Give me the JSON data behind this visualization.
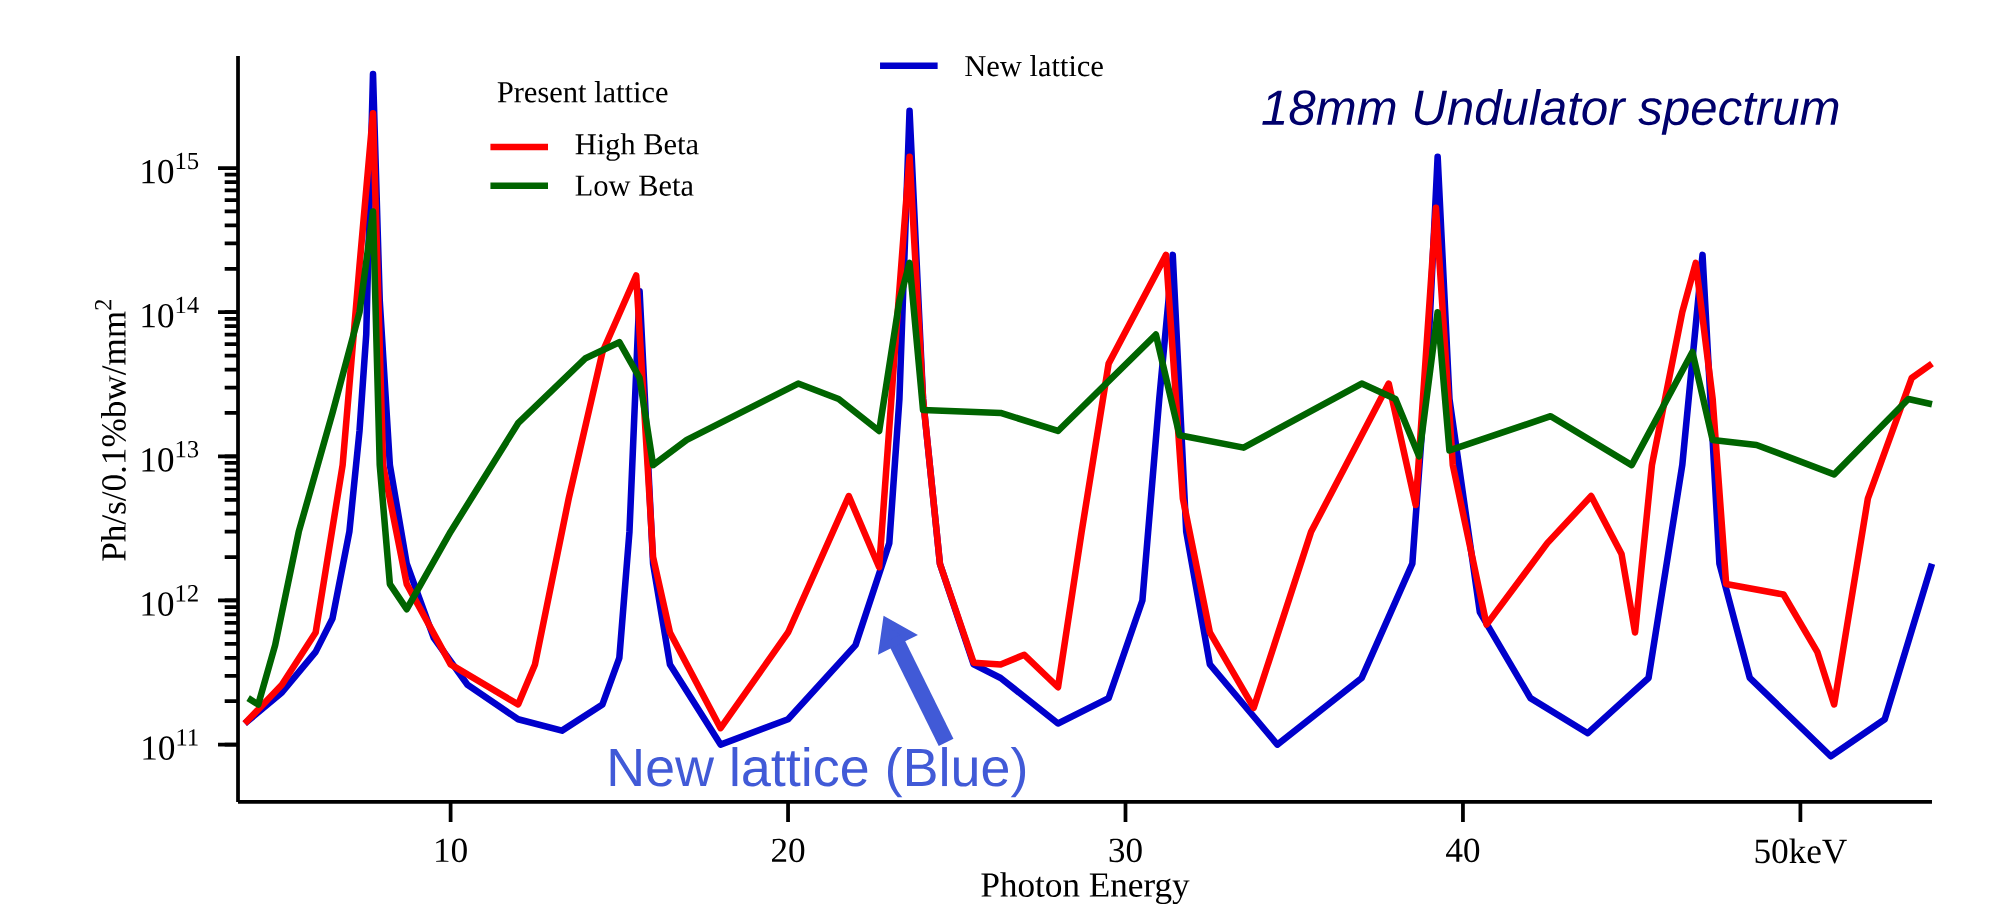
{
  "chart_data": {
    "type": "line",
    "title": "18mm Undulator spectrum",
    "xlabel": "Photon Energy",
    "ylabel": "Ph/s/0.1%bw/mm$^{2}$",
    "legend_title": "Present lattice",
    "legend": "top",
    "log": "y",
    "xlim": [
      3.7,
      53.9
    ],
    "ylim": [
      40000000000.0,
      6000000000000000.0
    ],
    "xticks": [
      10,
      20,
      30,
      40,
      {
        "value": 50,
        "label": "50keV"
      }
    ],
    "yticks": [
      {
        "value": 100000000000.0,
        "label": "10$^{11}$"
      },
      {
        "value": 1000000000000.0,
        "label": "10$^{12}$"
      },
      {
        "value": 10000000000000.0,
        "label": "10$^{13}$"
      },
      {
        "value": 100000000000000.0,
        "label": "10$^{14}$"
      },
      {
        "value": 1000000000000000.0,
        "label": "10$^{15}$"
      }
    ],
    "series": [
      {
        "name": "New lattice",
        "color": "#0000cc",
        "x": [
          3.9,
          5,
          6,
          6.5,
          7,
          7.3,
          7.5,
          7.7,
          7.9,
          8.2,
          8.7,
          9.5,
          10.5,
          12,
          13.3,
          14.5,
          15,
          15.3,
          15.6,
          16,
          16.5,
          18,
          20,
          22,
          23,
          23.3,
          23.6,
          24,
          24.5,
          25.5,
          26.3,
          28,
          29.5,
          30.5,
          31,
          31.4,
          31.8,
          32.5,
          34.5,
          37,
          38.5,
          39,
          39.25,
          39.6,
          40.5,
          42,
          43.7,
          45.5,
          46.5,
          47.1,
          47.6,
          48.5,
          50.9,
          52.5,
          53.9
        ],
        "values": [
          140000000000.0,
          230000000000.0,
          440000000000.0,
          750000000000.0,
          3000000000000.0,
          15000000000000.0,
          70000000000000.0,
          4500000000000000.0,
          120000000000000.0,
          8700000000000.0,
          1800000000000.0,
          550000000000.0,
          260000000000.0,
          150000000000.0,
          125000000000.0,
          190000000000.0,
          400000000000.0,
          3000000000000.0,
          140000000000000.0,
          1800000000000.0,
          360000000000.0,
          100000000000.0,
          150000000000.0,
          490000000000.0,
          2500000000000.0,
          25000000000000.0,
          2500000000000000.0,
          25000000000000.0,
          1800000000000.0,
          360000000000.0,
          290000000000.0,
          140000000000.0,
          210000000000.0,
          1000000000000.0,
          25000000000000.0,
          250000000000000.0,
          3000000000000.0,
          360000000000.0,
          100000000000.0,
          290000000000.0,
          1800000000000.0,
          73000000000000.0,
          1200000000000000.0,
          25000000000000.0,
          830000000000.0,
          210000000000.0,
          120000000000.0,
          290000000000.0,
          8700000000000.0,
          250000000000000.0,
          1800000000000.0,
          290000000000.0,
          83000000000.0,
          150000000000.0,
          1800000000000.0
        ]
      },
      {
        "name": "High Beta",
        "color": "#ff0000",
        "x": [
          3.9,
          5,
          6,
          6.8,
          7.3,
          7.7,
          8,
          8.7,
          10,
          12,
          12.5,
          13.5,
          14.5,
          15.5,
          16,
          16.5,
          18,
          20,
          21.8,
          22.7,
          23.2,
          23.6,
          24,
          24.5,
          25.5,
          26.3,
          27,
          28,
          28.7,
          29.5,
          31.2,
          31.7,
          32.5,
          33.8,
          35.5,
          37.8,
          38.6,
          39.2,
          39.7,
          40.7,
          42.5,
          43.8,
          44.7,
          45.1,
          45.6,
          46.5,
          46.9,
          47.4,
          47.8,
          49.5,
          50.5,
          51,
          52,
          53.3,
          53.9
        ],
        "values": [
          140000000000.0,
          260000000000.0,
          600000000000.0,
          8700000000000.0,
          210000000000000.0,
          2400000000000000.0,
          8700000000000.0,
          1300000000000.0,
          360000000000.0,
          190000000000.0,
          360000000000.0,
          5100000000000.0,
          53000000000000.0,
          180000000000000.0,
          2000000000000.0,
          600000000000.0,
          130000000000.0,
          600000000000.0,
          5300000000000.0,
          1700000000000.0,
          70000000000000.0,
          1200000000000000.0,
          25000000000000.0,
          1800000000000.0,
          370000000000.0,
          360000000000.0,
          420000000000.0,
          250000000000.0,
          3000000000000.0,
          44000000000000.0,
          250000000000000.0,
          5100000000000.0,
          600000000000.0,
          180000000000.0,
          3000000000000.0,
          32000000000000.0,
          4600000000000.0,
          530000000000000.0,
          8700000000000.0,
          680000000000.0,
          2500000000000.0,
          5300000000000.0,
          2100000000000.0,
          600000000000.0,
          8700000000000.0,
          100000000000000.0,
          220000000000000.0,
          25000000000000.0,
          1300000000000.0,
          1100000000000.0,
          440000000000.0,
          190000000000.0,
          5100000000000.0,
          35000000000000.0,
          44000000000000.0
        ]
      },
      {
        "name": "Low Beta",
        "color": "#006400",
        "x": [
          4,
          4.3,
          4.8,
          5.5,
          6.5,
          7.3,
          7.7,
          7.9,
          8.2,
          8.7,
          10,
          12,
          14,
          15,
          15.6,
          16,
          17,
          20.3,
          21.5,
          22.7,
          23.3,
          23.6,
          24,
          26.3,
          28,
          30.9,
          31.6,
          33.5,
          37,
          38,
          38.7,
          39.25,
          39.6,
          42.6,
          45,
          46.8,
          47.4,
          48.7,
          51,
          53.2,
          53.9
        ],
        "values": [
          210000000000.0,
          190000000000.0,
          490000000000.0,
          3000000000000.0,
          20000000000000.0,
          100000000000000.0,
          500000000000000.0,
          8700000000000.0,
          1300000000000.0,
          870000000000.0,
          3000000000000.0,
          17000000000000.0,
          48000000000000.0,
          62000000000000.0,
          35000000000000.0,
          8700000000000.0,
          13000000000000.0,
          32000000000000.0,
          25000000000000.0,
          15000000000000.0,
          120000000000000.0,
          220000000000000.0,
          21000000000000.0,
          20000000000000.0,
          15000000000000.0,
          70000000000000.0,
          14000000000000.0,
          11500000000000.0,
          32000000000000.0,
          25000000000000.0,
          10000000000000.0,
          100000000000000.0,
          11000000000000.0,
          19000000000000.0,
          8700000000000.0,
          53000000000000.0,
          13000000000000.0,
          12000000000000.0,
          7500000000000.0,
          25000000000000.0,
          23000000000000.0
        ]
      }
    ],
    "annotations": [
      "New lattice (Blue)"
    ]
  }
}
